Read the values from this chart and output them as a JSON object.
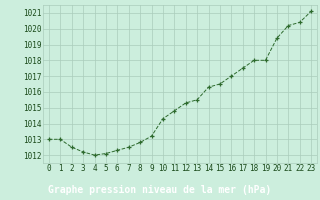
{
  "x": [
    0,
    1,
    2,
    3,
    4,
    5,
    6,
    7,
    8,
    9,
    10,
    11,
    12,
    13,
    14,
    15,
    16,
    17,
    18,
    19,
    20,
    21,
    22,
    23
  ],
  "y": [
    1013.0,
    1013.0,
    1012.5,
    1012.2,
    1012.0,
    1012.1,
    1012.3,
    1012.5,
    1012.8,
    1013.2,
    1014.3,
    1014.8,
    1015.3,
    1015.5,
    1016.3,
    1016.5,
    1017.0,
    1017.5,
    1018.0,
    1018.0,
    1019.4,
    1020.2,
    1020.4,
    1021.1
  ],
  "ylim": [
    1011.5,
    1021.5
  ],
  "yticks": [
    1012,
    1013,
    1014,
    1015,
    1016,
    1017,
    1018,
    1019,
    1020,
    1021
  ],
  "xticks": [
    0,
    1,
    2,
    3,
    4,
    5,
    6,
    7,
    8,
    9,
    10,
    11,
    12,
    13,
    14,
    15,
    16,
    17,
    18,
    19,
    20,
    21,
    22,
    23
  ],
  "line_color": "#2d6a2d",
  "marker": "+",
  "bg_color": "#cceedd",
  "plot_bg_color": "#cceedd",
  "grid_color": "#aaccbb",
  "bottom_bar_color": "#336633",
  "xlabel": "Graphe pression niveau de la mer (hPa)",
  "xlabel_color": "#ffffff",
  "tick_label_color": "#1a4a1a",
  "xlabel_fontsize": 7.0,
  "tick_fontsize": 5.5
}
